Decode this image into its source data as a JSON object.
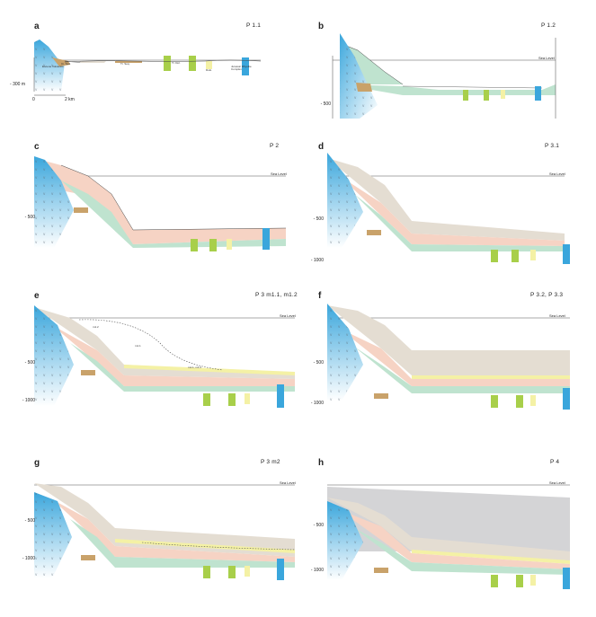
{
  "sea_level_label": "Sea Level",
  "colors": {
    "basement_blue": "#3aa6dc",
    "green_unit": "#bfe3cf",
    "pink_unit": "#f6d3c4",
    "tan_unit": "#e4ddd2",
    "yellow_unit": "#f4f1a5",
    "grey_unit": "#d4d4d6",
    "brown_unit": "#c9a26a",
    "lime_well": "#a8cf4a"
  },
  "panels": [
    {
      "label": "a",
      "code": "P 1.1",
      "sea_level": "",
      "ticks": [
        "- 300 m"
      ],
      "scale_left": "0",
      "scale_right": "2 km",
      "annotations": [
        "Eocene Volcanics",
        "Cr. Sed.",
        "Cr. Sed.",
        "Tr. Seq.",
        "Tr. Dol.",
        "Dolo.",
        "Jurassic Rhyolite Complex"
      ]
    },
    {
      "label": "b",
      "code": "P 1.2",
      "sea_level": "Sea Level",
      "ticks": [
        "- 500"
      ]
    },
    {
      "label": "c",
      "code": "P 2",
      "sea_level": "Sea Level",
      "ticks": [
        "- 500"
      ]
    },
    {
      "label": "d",
      "code": "P 3.1",
      "sea_level": "Sea Level",
      "ticks": [
        "- 500",
        "- 1000"
      ]
    },
    {
      "label": "e",
      "code": "P 3 m1.1, m1.2",
      "sea_level": "Sea Level",
      "ticks": [
        "- 500",
        "- 1000"
      ],
      "annotations": [
        "m1.2",
        "m1.1",
        "m1.1, m1.2"
      ]
    },
    {
      "label": "f",
      "code": "P 3.2, P 3.3",
      "sea_level": "Sea Level",
      "ticks": [
        "- 500",
        "- 1000"
      ]
    },
    {
      "label": "g",
      "code": "P 3 m2",
      "sea_level": "Sea Level",
      "ticks": [
        "- 500",
        "- 1000"
      ]
    },
    {
      "label": "h",
      "code": "P 4",
      "sea_level": "Sea Level",
      "ticks": [
        "- 500",
        "- 1000"
      ]
    }
  ]
}
